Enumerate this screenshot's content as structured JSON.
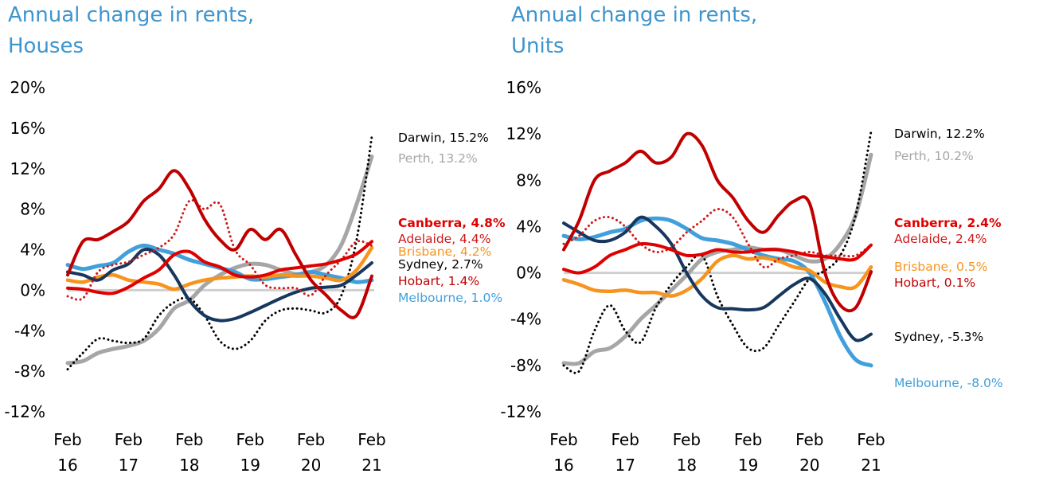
{
  "chart_data": [
    {
      "id": "houses",
      "type": "line",
      "title": "Annual change in rents,\nHouses",
      "title_lines": [
        "Annual change in rents,",
        "Houses"
      ],
      "xlabel": "",
      "ylabel": "",
      "ylim": [
        -12,
        20
      ],
      "yticks": [
        20,
        16,
        12,
        8,
        4,
        0,
        -4,
        -8,
        -12
      ],
      "ytick_labels": [
        "20%",
        "16%",
        "12%",
        "8%",
        "4%",
        "0%",
        "-4%",
        "-8%",
        "-12%"
      ],
      "xticks": [
        0,
        4,
        8,
        12,
        16,
        20
      ],
      "xtick_labels": [
        [
          "Feb",
          "16"
        ],
        [
          "Feb",
          "17"
        ],
        [
          "Feb",
          "18"
        ],
        [
          "Feb",
          "19"
        ],
        [
          "Feb",
          "20"
        ],
        [
          "Feb",
          "21"
        ]
      ],
      "x_unit": "quarters since Feb 2016",
      "zero_line": true,
      "grid": false,
      "legend": "end-labels-right",
      "series": [
        {
          "name": "Darwin",
          "end_label": "Darwin, 15.2%",
          "color": "#000000",
          "style": "dotted",
          "width": 2.5,
          "bold": false,
          "label_color": "#000000",
          "values": [
            -7.8,
            -6.2,
            -4.8,
            -5.0,
            -5.2,
            -4.8,
            -2.5,
            -1.2,
            -0.8,
            -2.5,
            -5.0,
            -5.8,
            -5.0,
            -3.0,
            -2.0,
            -1.8,
            -2.0,
            -2.2,
            -0.5,
            5.0,
            15.2
          ]
        },
        {
          "name": "Perth",
          "end_label": "Perth, 13.2%",
          "color": "#a6a6a6",
          "style": "solid",
          "width": 5,
          "bold": false,
          "label_color": "#a6a6a6",
          "values": [
            -7.2,
            -7.0,
            -6.2,
            -5.8,
            -5.5,
            -5.0,
            -3.8,
            -1.8,
            -1.0,
            0.5,
            1.5,
            2.2,
            2.6,
            2.5,
            2.0,
            1.6,
            1.8,
            2.5,
            4.5,
            8.5,
            13.2
          ]
        },
        {
          "name": "Canberra",
          "end_label": "Canberra, 4.8%",
          "color": "#e00000",
          "style": "solid",
          "width": 4,
          "bold": true,
          "label_color": "#e00000",
          "values": [
            0.2,
            0.1,
            -0.2,
            -0.3,
            0.3,
            1.2,
            2.0,
            3.5,
            3.8,
            2.8,
            2.3,
            1.5,
            1.3,
            1.5,
            2.0,
            2.2,
            2.4,
            2.6,
            3.0,
            3.6,
            4.8
          ]
        },
        {
          "name": "Adelaide",
          "end_label": "Adelaide, 4.4%",
          "color": "#cc1a1a",
          "style": "dotted",
          "width": 2.5,
          "bold": false,
          "label_color": "#cc1a1a",
          "values": [
            -0.6,
            -0.8,
            1.8,
            2.5,
            2.8,
            3.5,
            4.2,
            5.5,
            8.8,
            8.0,
            8.5,
            4.0,
            2.5,
            0.5,
            0.2,
            0.2,
            -0.5,
            1.5,
            3.0,
            4.8,
            4.4
          ]
        },
        {
          "name": "Brisbane",
          "end_label": "Brisbane, 4.2%",
          "color": "#f7941d",
          "style": "solid",
          "width": 4.5,
          "bold": false,
          "label_color": "#f7941d",
          "values": [
            1.0,
            0.8,
            1.3,
            1.5,
            1.0,
            0.8,
            0.6,
            0.1,
            0.6,
            1.0,
            1.2,
            1.3,
            1.4,
            1.3,
            1.5,
            1.4,
            1.4,
            1.2,
            1.0,
            2.0,
            4.2
          ]
        },
        {
          "name": "Sydney",
          "end_label": "Sydney, 2.7%",
          "color": "#17375e",
          "style": "solid",
          "width": 4,
          "bold": false,
          "label_color": "#000000",
          "values": [
            1.8,
            1.5,
            1.0,
            2.0,
            2.6,
            4.0,
            3.5,
            1.5,
            -1.0,
            -2.5,
            -3.0,
            -2.8,
            -2.2,
            -1.5,
            -0.8,
            -0.2,
            0.2,
            0.3,
            0.5,
            1.5,
            2.7
          ]
        },
        {
          "name": "Hobart",
          "end_label": "Hobart, 1.4%",
          "color": "#c00000",
          "style": "solid",
          "width": 4,
          "bold": false,
          "label_color": "#c00000",
          "values": [
            1.5,
            4.8,
            5.0,
            5.8,
            6.8,
            8.8,
            10.0,
            11.8,
            10.0,
            7.0,
            5.0,
            4.0,
            6.0,
            5.0,
            6.0,
            3.5,
            1.0,
            -0.5,
            -2.0,
            -2.5,
            1.4
          ]
        },
        {
          "name": "Melbourne",
          "end_label": "Melbourne, 1.0%",
          "color": "#41a0db",
          "style": "solid",
          "width": 5,
          "bold": false,
          "label_color": "#41a0db",
          "values": [
            2.5,
            2.1,
            2.4,
            2.7,
            3.8,
            4.4,
            4.0,
            3.6,
            3.0,
            2.6,
            2.2,
            1.8,
            1.1,
            1.1,
            1.3,
            1.5,
            1.8,
            1.5,
            1.2,
            0.8,
            1.0
          ]
        }
      ]
    },
    {
      "id": "units",
      "type": "line",
      "title": "Annual change in rents,\nUnits",
      "title_lines": [
        "Annual change in rents,",
        "Units"
      ],
      "xlabel": "",
      "ylabel": "",
      "ylim": [
        -12,
        16
      ],
      "yticks": [
        16,
        12,
        8,
        4,
        0,
        -4,
        -8,
        -12
      ],
      "ytick_labels": [
        "16%",
        "12%",
        "8%",
        "4%",
        "0%",
        "-4%",
        "-8%",
        "-12%"
      ],
      "xticks": [
        0,
        4,
        8,
        12,
        16,
        20
      ],
      "xtick_labels": [
        [
          "Feb",
          "16"
        ],
        [
          "Feb",
          "17"
        ],
        [
          "Feb",
          "18"
        ],
        [
          "Feb",
          "19"
        ],
        [
          "Feb",
          "20"
        ],
        [
          "Feb",
          "21"
        ]
      ],
      "x_unit": "quarters since Feb 2016",
      "zero_line": true,
      "grid": false,
      "legend": "end-labels-right",
      "series": [
        {
          "name": "Darwin",
          "end_label": "Darwin, 12.2%",
          "color": "#000000",
          "style": "dotted",
          "width": 2.5,
          "bold": false,
          "label_color": "#000000",
          "values": [
            -8.0,
            -8.5,
            -5.0,
            -2.8,
            -5.0,
            -6.0,
            -3.0,
            -1.0,
            0.5,
            1.5,
            -2.0,
            -4.5,
            -6.5,
            -6.5,
            -4.5,
            -2.5,
            -0.5,
            0.2,
            1.5,
            5.0,
            12.2
          ]
        },
        {
          "name": "Perth",
          "end_label": "Perth, 10.2%",
          "color": "#a6a6a6",
          "style": "solid",
          "width": 5,
          "bold": false,
          "label_color": "#a6a6a6",
          "values": [
            -7.8,
            -7.8,
            -6.8,
            -6.5,
            -5.5,
            -4.0,
            -2.8,
            -1.5,
            -0.2,
            1.2,
            1.8,
            2.0,
            2.2,
            2.0,
            2.0,
            1.5,
            1.0,
            1.2,
            2.5,
            5.0,
            10.2
          ]
        },
        {
          "name": "Canberra",
          "end_label": "Canberra, 2.4%",
          "color": "#e00000",
          "style": "solid",
          "width": 4,
          "bold": true,
          "label_color": "#e00000",
          "values": [
            0.3,
            0.0,
            0.5,
            1.5,
            2.0,
            2.5,
            2.4,
            2.0,
            1.5,
            1.6,
            2.0,
            1.8,
            1.8,
            2.0,
            2.0,
            1.8,
            1.5,
            1.4,
            1.2,
            1.2,
            2.4
          ]
        },
        {
          "name": "Adelaide",
          "end_label": "Adelaide, 2.4%",
          "color": "#cc1a1a",
          "style": "dotted",
          "width": 2.5,
          "bold": false,
          "label_color": "#cc1a1a",
          "values": [
            2.5,
            3.2,
            4.5,
            4.8,
            4.0,
            2.5,
            1.8,
            2.2,
            3.5,
            4.5,
            5.5,
            4.8,
            2.5,
            0.5,
            1.2,
            1.5,
            1.8,
            1.5,
            1.5,
            1.5,
            2.4
          ]
        },
        {
          "name": "Brisbane",
          "end_label": "Brisbane, 0.5%",
          "color": "#f7941d",
          "style": "solid",
          "width": 4.5,
          "bold": false,
          "label_color": "#f7941d",
          "values": [
            -0.6,
            -1.0,
            -1.5,
            -1.6,
            -1.5,
            -1.7,
            -1.7,
            -2.0,
            -1.5,
            -0.5,
            1.0,
            1.5,
            1.2,
            1.3,
            1.0,
            0.5,
            0.2,
            -0.8,
            -1.2,
            -1.2,
            0.5
          ]
        },
        {
          "name": "Sydney",
          "end_label": "Sydney, -5.3%",
          "color": "#17375e",
          "style": "solid",
          "width": 4,
          "bold": false,
          "label_color": "#000000",
          "values": [
            4.3,
            3.5,
            2.8,
            2.8,
            3.5,
            4.8,
            4.0,
            2.5,
            0.0,
            -2.0,
            -3.0,
            -3.1,
            -3.2,
            -3.0,
            -2.0,
            -1.0,
            -0.5,
            -1.8,
            -4.0,
            -5.8,
            -5.3
          ]
        },
        {
          "name": "Hobart",
          "end_label": "Hobart, 0.1%",
          "color": "#c00000",
          "style": "solid",
          "width": 4,
          "bold": false,
          "label_color": "#c00000",
          "values": [
            2.0,
            4.5,
            8.0,
            8.8,
            9.5,
            10.5,
            9.5,
            10.0,
            12.0,
            11.0,
            8.0,
            6.5,
            4.5,
            3.5,
            5.0,
            6.2,
            6.0,
            0.0,
            -2.8,
            -3.0,
            0.1
          ]
        },
        {
          "name": "Melbourne",
          "end_label": "Melbourne, -8.0%",
          "color": "#41a0db",
          "style": "solid",
          "width": 5,
          "bold": false,
          "label_color": "#41a0db",
          "values": [
            3.2,
            2.9,
            3.1,
            3.5,
            3.8,
            4.5,
            4.7,
            4.5,
            3.8,
            3.0,
            2.8,
            2.5,
            2.0,
            1.5,
            1.2,
            1.0,
            0.0,
            -2.5,
            -5.5,
            -7.5,
            -8.0
          ]
        }
      ]
    }
  ]
}
